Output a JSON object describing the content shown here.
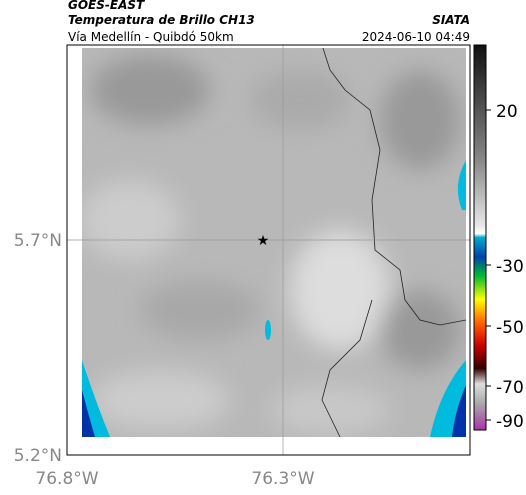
{
  "header": {
    "source": "GOES-EAST",
    "title": "Temperatura de Brillo CH13",
    "subtitle": "Vía Medellín - Quibdó 50km",
    "brand": "SIATA",
    "timestamp": "2024-06-10 04:49"
  },
  "map": {
    "lat_labels": [
      "5.7°N",
      "5.2°N"
    ],
    "lon_labels": [
      "76.8°W",
      "76.3°W"
    ]
  },
  "colorbar": {
    "ticks": [
      20,
      -30,
      -50,
      -70,
      -90
    ]
  }
}
